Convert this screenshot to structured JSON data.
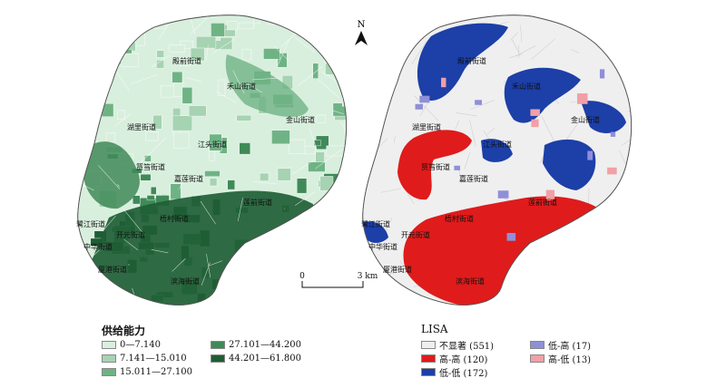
{
  "left_map": {
    "legend_title": "供给能力",
    "classes": [
      {
        "range": "0—7.140",
        "color": "#d9efde"
      },
      {
        "range": "7.141—15.010",
        "color": "#a6d3b2"
      },
      {
        "range": "15.011—27.100",
        "color": "#6fb385"
      },
      {
        "range": "27.101—44.200",
        "color": "#3f8a58"
      },
      {
        "range": "44.201—61.800",
        "color": "#1f5e35"
      }
    ]
  },
  "right_map": {
    "legend_title": "LISA",
    "classes": [
      {
        "label": "不显著 (551)",
        "color": "#efefef"
      },
      {
        "label": "高-高 (120)",
        "color": "#e01b1b"
      },
      {
        "label": "低-低 (172)",
        "color": "#1c3fa8"
      },
      {
        "label": "低-高 (17)",
        "color": "#8f8fd8"
      },
      {
        "label": "高-低 (13)",
        "color": "#f0a0a6"
      }
    ]
  },
  "districts": [
    "殿前街道",
    "禾山街道",
    "金山街道",
    "湖里街道",
    "江头街道",
    "筼筜街道",
    "嘉莲街道",
    "莲前街道",
    "梧村街道",
    "鹭江街道",
    "开元街道",
    "中华街道",
    "厦港街道",
    "滨海街道"
  ],
  "north_arrow": {
    "label": "N"
  },
  "scale_bar": {
    "start": "0",
    "end": "3 km"
  }
}
